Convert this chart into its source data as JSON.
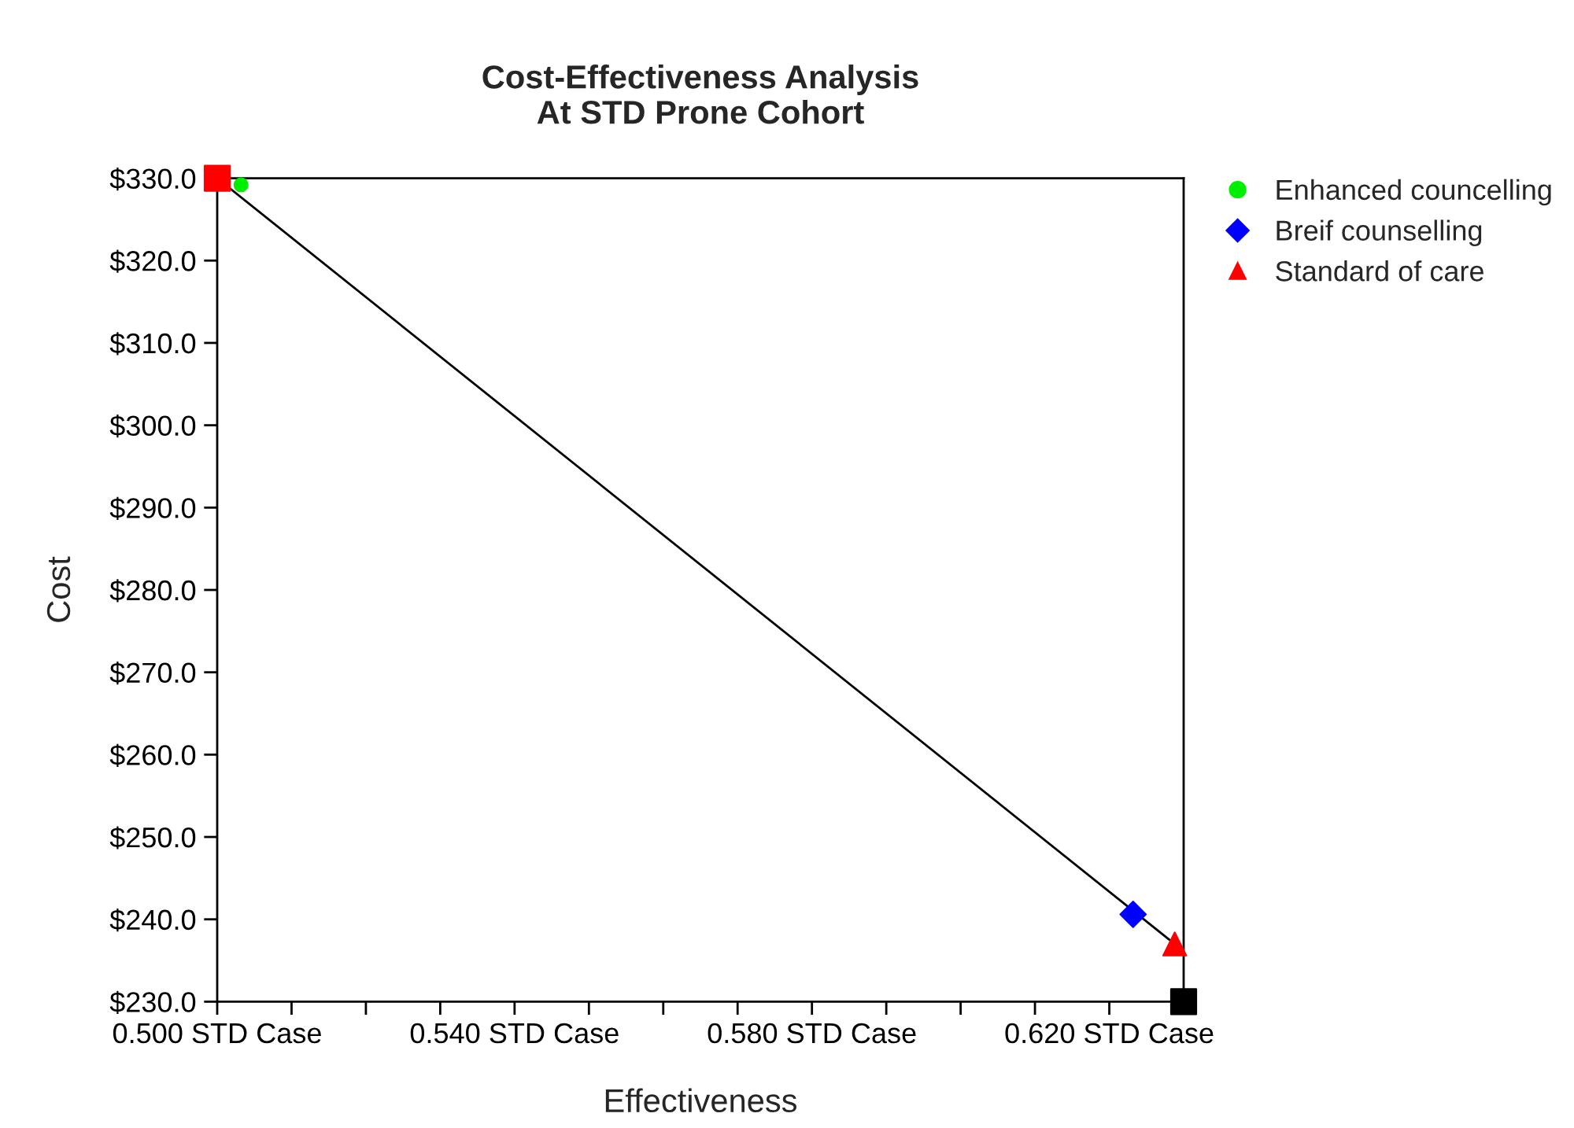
{
  "chart_data": {
    "type": "scatter",
    "title": "Cost-Effectiveness Analysis\nAt STD Prone Cohort",
    "xlabel": "Effectiveness",
    "ylabel": "Cost",
    "xlim": [
      0.5,
      0.63
    ],
    "ylim": [
      230,
      330
    ],
    "xticks": [
      {
        "value": 0.5,
        "label": "0.500 STD Case"
      },
      {
        "value": 0.51,
        "label": null
      },
      {
        "value": 0.52,
        "label": null
      },
      {
        "value": 0.53,
        "label": null
      },
      {
        "value": 0.54,
        "label": "0.540 STD Case"
      },
      {
        "value": 0.55,
        "label": null
      },
      {
        "value": 0.56,
        "label": null
      },
      {
        "value": 0.57,
        "label": null
      },
      {
        "value": 0.58,
        "label": "0.580 STD Case"
      },
      {
        "value": 0.59,
        "label": null
      },
      {
        "value": 0.6,
        "label": null
      },
      {
        "value": 0.61,
        "label": null
      },
      {
        "value": 0.62,
        "label": "0.620 STD Case"
      }
    ],
    "yticks": [
      {
        "value": 230,
        "label": "$230.0"
      },
      {
        "value": 240,
        "label": "$240.0"
      },
      {
        "value": 250,
        "label": "$250.0"
      },
      {
        "value": 260,
        "label": "$260.0"
      },
      {
        "value": 270,
        "label": "$270.0"
      },
      {
        "value": 280,
        "label": "$280.0"
      },
      {
        "value": 290,
        "label": "$290.0"
      },
      {
        "value": 300,
        "label": "$300.0"
      },
      {
        "value": 310,
        "label": "$310.0"
      },
      {
        "value": 320,
        "label": "$320.0"
      },
      {
        "value": 330,
        "label": "$330.0"
      }
    ],
    "grid": false,
    "legend": "top right",
    "series": [
      {
        "type": "line",
        "color": "#000000",
        "marker": "none",
        "x": [
          0.5,
          0.6288
        ],
        "values": [
          330,
          237.0
        ]
      },
      {
        "color": "#ff0000",
        "marker": "square",
        "x": [
          0.5
        ],
        "values": [
          330
        ]
      },
      {
        "color": "#000000",
        "marker": "square",
        "x": [
          0.63
        ],
        "values": [
          230
        ]
      },
      {
        "name": "Enhanced councelling",
        "color": "#00ee00",
        "marker": "circle",
        "x": [
          0.5032
        ],
        "values": [
          329.2
        ]
      },
      {
        "name": "Breif counselling",
        "color": "#0000ff",
        "marker": "diamond",
        "x": [
          0.6232
        ],
        "values": [
          240.6
        ]
      },
      {
        "name": "Standard of care",
        "color": "#ff0000",
        "marker": "triangle",
        "x": [
          0.6288
        ],
        "values": [
          237.0
        ]
      }
    ]
  }
}
